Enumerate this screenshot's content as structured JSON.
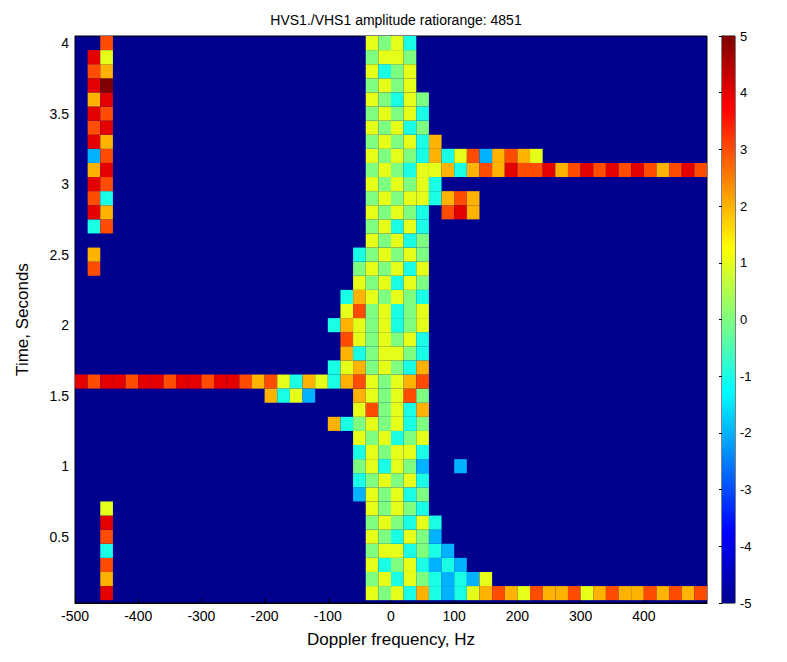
{
  "chart_data": {
    "type": "heatmap",
    "title": "HVS1./VHS1 amplitude ratiorange: 4851",
    "x_label": "Doppler frequency, Hz",
    "y_label": "Time, Seconds",
    "xlim": [
      -500,
      500
    ],
    "xticks": [
      -500,
      -400,
      -300,
      -200,
      -100,
      0,
      100,
      200,
      300,
      400
    ],
    "ylim": [
      0.03,
      4.05
    ],
    "yticks": [
      0.5,
      1,
      1.5,
      2,
      2.5,
      3,
      3.5,
      4
    ],
    "grid": false,
    "cell_width": 20,
    "cell_height": 0.1,
    "empty_value": -5,
    "cells": [
      {
        "time": 0.1,
        "freq_start": -450,
        "values": [
          4
        ]
      },
      {
        "time": 0.2,
        "freq_start": -450,
        "values": [
          2
        ]
      },
      {
        "time": 0.3,
        "freq_start": -450,
        "values": [
          3
        ]
      },
      {
        "time": 0.4,
        "freq_start": -450,
        "values": [
          -1
        ]
      },
      {
        "time": 0.5,
        "freq_start": -450,
        "values": [
          3
        ]
      },
      {
        "time": 0.6,
        "freq_start": -450,
        "values": [
          4
        ]
      },
      {
        "time": 0.7,
        "freq_start": -450,
        "values": [
          1
        ]
      },
      {
        "time": 2.4,
        "freq_start": -470,
        "values": [
          3
        ]
      },
      {
        "time": 2.5,
        "freq_start": -470,
        "values": [
          2
        ]
      },
      {
        "time": 2.7,
        "freq_start": -470,
        "values": [
          -1,
          3
        ]
      },
      {
        "time": 2.8,
        "freq_start": -470,
        "values": [
          4,
          2
        ]
      },
      {
        "time": 2.9,
        "freq_start": -470,
        "values": [
          3,
          -1
        ]
      },
      {
        "time": 3.0,
        "freq_start": -470,
        "values": [
          4,
          3
        ]
      },
      {
        "time": 3.1,
        "freq_start": -470,
        "values": [
          2,
          4
        ]
      },
      {
        "time": 3.2,
        "freq_start": -470,
        "values": [
          -2,
          3
        ]
      },
      {
        "time": 3.3,
        "freq_start": -470,
        "values": [
          4,
          2
        ]
      },
      {
        "time": 3.4,
        "freq_start": -470,
        "values": [
          3,
          4
        ]
      },
      {
        "time": 3.5,
        "freq_start": -470,
        "values": [
          4,
          3
        ]
      },
      {
        "time": 3.6,
        "freq_start": -470,
        "values": [
          2,
          4
        ]
      },
      {
        "time": 3.7,
        "freq_start": -470,
        "values": [
          4,
          5
        ]
      },
      {
        "time": 3.8,
        "freq_start": -470,
        "values": [
          3,
          2
        ]
      },
      {
        "time": 3.9,
        "freq_start": -470,
        "values": [
          4,
          1
        ]
      },
      {
        "time": 4.0,
        "freq_start": -450,
        "values": [
          3
        ]
      },
      {
        "time": 1.6,
        "freq_start": -490,
        "values": [
          4,
          3,
          4,
          4,
          3,
          4,
          4,
          3,
          4,
          4,
          3,
          4,
          4,
          3,
          2,
          3,
          1,
          -1,
          2,
          1,
          -1,
          2
        ]
      },
      {
        "time": 1.5,
        "freq_start": -190,
        "values": [
          2,
          -1,
          1,
          -2
        ]
      },
      {
        "time": 3.1,
        "freq_start": 70,
        "values": [
          1,
          2,
          -1,
          2,
          3,
          2,
          4,
          3,
          3,
          4,
          2,
          3,
          4,
          3,
          4,
          3,
          4,
          3,
          2,
          3,
          4,
          3
        ]
      },
      {
        "time": 3.2,
        "freq_start": 70,
        "values": [
          2,
          -1,
          1,
          3,
          -2,
          2,
          3,
          2,
          1
        ]
      },
      {
        "time": 2.8,
        "freq_start": 90,
        "values": [
          3,
          4,
          2
        ]
      },
      {
        "time": 2.9,
        "freq_start": 110,
        "values": [
          3,
          2
        ]
      },
      {
        "time": 1.0,
        "freq_start": 110,
        "values": [
          -2
        ]
      },
      {
        "time": 0.1,
        "freq_start": -30,
        "values": [
          1,
          0,
          1,
          -1,
          2,
          -1,
          -2,
          -1,
          1,
          2,
          3,
          2,
          1,
          3,
          2,
          2,
          3,
          1,
          2,
          3,
          2,
          2,
          3,
          2,
          3,
          2,
          3
        ]
      },
      {
        "time": 0.2,
        "freq_start": -30,
        "values": [
          0,
          1,
          -1,
          1,
          0,
          -1,
          -2,
          -1,
          -2,
          1
        ]
      },
      {
        "time": 0.3,
        "freq_start": -30,
        "values": [
          1,
          -1,
          0,
          1,
          -1,
          -2,
          -1,
          -2
        ]
      },
      {
        "time": 0.4,
        "freq_start": -30,
        "values": [
          0,
          1,
          1,
          -1,
          0,
          -1,
          -2
        ]
      },
      {
        "time": 0.5,
        "freq_start": -30,
        "values": [
          1,
          0,
          -1,
          1,
          0,
          -2
        ]
      },
      {
        "time": 0.6,
        "freq_start": -30,
        "values": [
          0,
          1,
          0,
          -1,
          1,
          -1
        ]
      },
      {
        "time": 0.7,
        "freq_start": -30,
        "values": [
          1,
          0,
          1,
          0,
          -1
        ]
      },
      {
        "time": 0.8,
        "freq_start": -50,
        "values": [
          -2,
          1,
          0,
          1,
          -1,
          0
        ]
      },
      {
        "time": 0.9,
        "freq_start": -50,
        "values": [
          -1,
          0,
          1,
          0,
          1,
          -1
        ]
      },
      {
        "time": 1.0,
        "freq_start": -50,
        "values": [
          0,
          1,
          -1,
          1,
          0,
          -2
        ]
      },
      {
        "time": 1.1,
        "freq_start": -50,
        "values": [
          -1,
          1,
          0,
          1,
          1,
          -1
        ]
      },
      {
        "time": 1.2,
        "freq_start": -50,
        "values": [
          1,
          0,
          1,
          -1,
          0,
          1
        ]
      },
      {
        "time": 1.3,
        "freq_start": -90,
        "values": [
          2,
          -1,
          0,
          1,
          0,
          1,
          -1,
          0
        ]
      },
      {
        "time": 1.4,
        "freq_start": -50,
        "values": [
          1,
          3,
          0,
          1,
          -1,
          2
        ]
      },
      {
        "time": 1.5,
        "freq_start": -50,
        "values": [
          2,
          1,
          0,
          1,
          3,
          0
        ]
      },
      {
        "time": 1.6,
        "freq_start": -50,
        "values": [
          3,
          1,
          0,
          1,
          2,
          3
        ]
      },
      {
        "time": 1.7,
        "freq_start": -90,
        "values": [
          -1,
          1,
          2,
          0,
          1,
          0,
          -1,
          2
        ]
      },
      {
        "time": 1.8,
        "freq_start": -70,
        "values": [
          2,
          -1,
          0,
          1,
          1,
          0,
          -1
        ]
      },
      {
        "time": 1.9,
        "freq_start": -70,
        "values": [
          3,
          1,
          0,
          1,
          0,
          1,
          -1
        ]
      },
      {
        "time": 2.0,
        "freq_start": -90,
        "values": [
          -1,
          2,
          1,
          0,
          1,
          -1,
          0,
          1
        ]
      },
      {
        "time": 2.1,
        "freq_start": -70,
        "values": [
          1,
          3,
          0,
          1,
          -1,
          0,
          1
        ]
      },
      {
        "time": 2.2,
        "freq_start": -70,
        "values": [
          -1,
          2,
          1,
          0,
          1,
          0,
          -1
        ]
      },
      {
        "time": 2.3,
        "freq_start": -50,
        "values": [
          1,
          0,
          1,
          -1,
          1,
          0
        ]
      },
      {
        "time": 2.4,
        "freq_start": -50,
        "values": [
          0,
          1,
          0,
          1,
          -1,
          1
        ]
      },
      {
        "time": 2.5,
        "freq_start": -50,
        "values": [
          -1,
          0,
          1,
          0,
          1,
          0
        ]
      },
      {
        "time": 2.6,
        "freq_start": -30,
        "values": [
          1,
          0,
          1,
          -1,
          0
        ]
      },
      {
        "time": 2.7,
        "freq_start": -30,
        "values": [
          0,
          1,
          -1,
          1,
          -1
        ]
      },
      {
        "time": 2.8,
        "freq_start": -30,
        "values": [
          1,
          0,
          1,
          0,
          -1
        ]
      },
      {
        "time": 2.9,
        "freq_start": -30,
        "values": [
          0,
          1,
          0,
          1,
          1,
          -1,
          2
        ]
      },
      {
        "time": 3.0,
        "freq_start": -30,
        "values": [
          1,
          0,
          1,
          0,
          1,
          -1
        ]
      },
      {
        "time": 3.1,
        "freq_start": -30,
        "values": [
          0,
          1,
          0,
          -1,
          1
        ]
      },
      {
        "time": 3.2,
        "freq_start": -30,
        "values": [
          1,
          0,
          1,
          0,
          -1
        ]
      },
      {
        "time": 3.3,
        "freq_start": -30,
        "values": [
          0,
          1,
          0,
          1,
          -1,
          2
        ]
      },
      {
        "time": 3.4,
        "freq_start": -30,
        "values": [
          1,
          0,
          1,
          -1,
          0
        ]
      },
      {
        "time": 3.5,
        "freq_start": -30,
        "values": [
          0,
          1,
          0,
          1,
          -1
        ]
      },
      {
        "time": 3.6,
        "freq_start": -30,
        "values": [
          1,
          0,
          -1,
          1,
          0
        ]
      },
      {
        "time": 3.7,
        "freq_start": -30,
        "values": [
          0,
          1,
          0,
          1
        ]
      },
      {
        "time": 3.8,
        "freq_start": -30,
        "values": [
          1,
          -1,
          0,
          1
        ]
      },
      {
        "time": 3.9,
        "freq_start": -30,
        "values": [
          0,
          1,
          1,
          0
        ]
      },
      {
        "time": 4.0,
        "freq_start": -30,
        "values": [
          1,
          0,
          1,
          -1
        ]
      }
    ],
    "colorbar": {
      "range": [
        -5,
        5
      ],
      "ticks": [
        -5,
        -4,
        -3,
        -2,
        -1,
        0,
        1,
        2,
        3,
        4,
        5
      ],
      "colors": [
        "#00008f",
        "#0000ff",
        "#007fff",
        "#00ffff",
        "#7fff7f",
        "#ffff00",
        "#ff7f00",
        "#ff0000",
        "#7f0000"
      ]
    }
  }
}
